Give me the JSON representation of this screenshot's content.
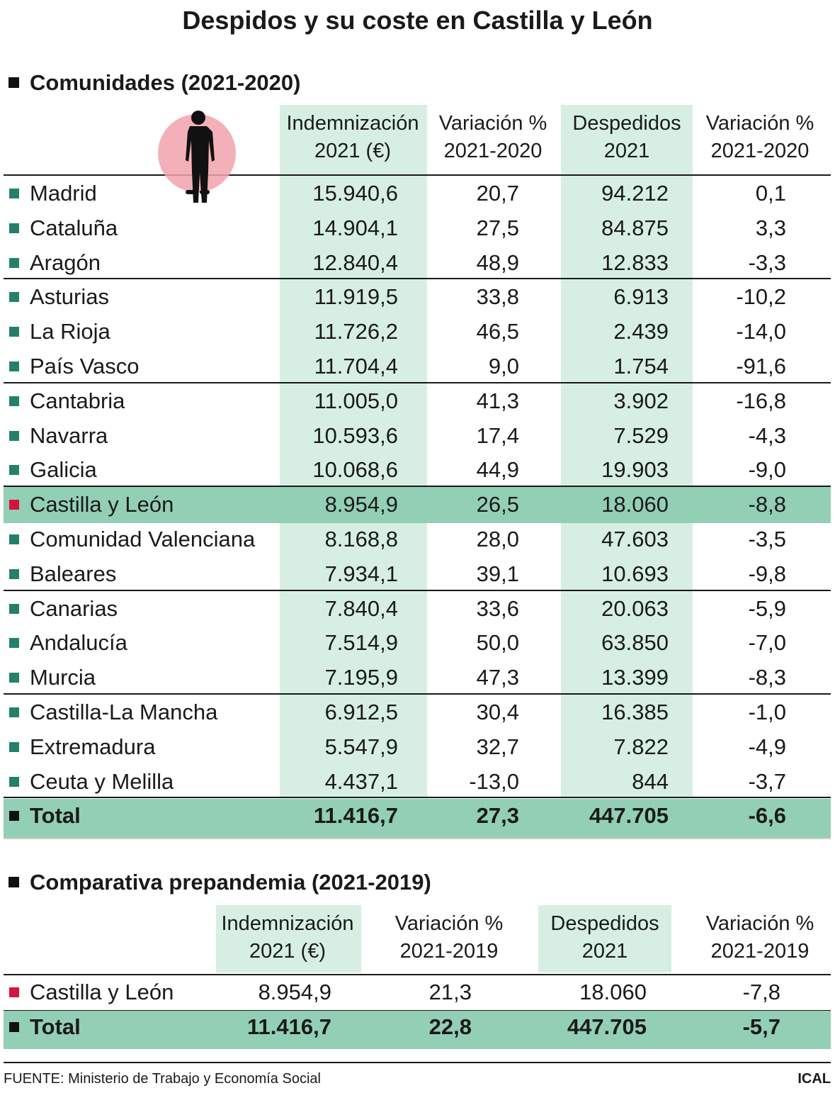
{
  "title": "Despidos y su coste en Castilla y León",
  "sections": [
    {
      "heading": "Comunidades (2021-2020)",
      "columns": [
        [
          "Indemnización",
          "2021 (€)"
        ],
        [
          "Variación %",
          "2021-2020"
        ],
        [
          "Despedidos",
          "2021"
        ],
        [
          "Variación %",
          "2021-2020"
        ]
      ],
      "rows": [
        {
          "label": "Madrid",
          "values": [
            "15.940,6",
            "20,7",
            "94.212",
            "0,1"
          ],
          "marker": "#24806a"
        },
        {
          "label": "Cataluña",
          "values": [
            "14.904,1",
            "27,5",
            "84.875",
            "3,3"
          ],
          "marker": "#24806a"
        },
        {
          "label": "Aragón",
          "values": [
            "12.840,4",
            "48,9",
            "12.833",
            "-3,3"
          ],
          "marker": "#24806a"
        },
        {
          "label": "Asturias",
          "values": [
            "11.919,5",
            "33,8",
            "6.913",
            "-10,2"
          ],
          "marker": "#24806a"
        },
        {
          "label": "La Rioja",
          "values": [
            "11.726,2",
            "46,5",
            "2.439",
            "-14,0"
          ],
          "marker": "#24806a"
        },
        {
          "label": "País Vasco",
          "values": [
            "11.704,4",
            "9,0",
            "1.754",
            "-91,6"
          ],
          "marker": "#24806a"
        },
        {
          "label": "Cantabria",
          "values": [
            "11.005,0",
            "41,3",
            "3.902",
            "-16,8"
          ],
          "marker": "#24806a"
        },
        {
          "label": "Navarra",
          "values": [
            "10.593,6",
            "17,4",
            "7.529",
            "-4,3"
          ],
          "marker": "#24806a"
        },
        {
          "label": "Galicia",
          "values": [
            "10.068,6",
            "44,9",
            "19.903",
            "-9,0"
          ],
          "marker": "#24806a"
        },
        {
          "label": "Castilla y León",
          "values": [
            "8.954,9",
            "26,5",
            "18.060",
            "-8,8"
          ],
          "marker": "#d5143c",
          "fill": "#93cfb5"
        },
        {
          "label": "Comunidad Valenciana",
          "values": [
            "8.168,8",
            "28,0",
            "47.603",
            "-3,5"
          ],
          "marker": "#24806a"
        },
        {
          "label": "Baleares",
          "values": [
            "7.934,1",
            "39,1",
            "10.693",
            "-9,8"
          ],
          "marker": "#24806a"
        },
        {
          "label": "Canarias",
          "values": [
            "7.840,4",
            "33,6",
            "20.063",
            "-5,9"
          ],
          "marker": "#24806a"
        },
        {
          "label": "Andalucía",
          "values": [
            "7.514,9",
            "50,0",
            "63.850",
            "-7,0"
          ],
          "marker": "#24806a"
        },
        {
          "label": "Murcia",
          "values": [
            "7.195,9",
            "47,3",
            "13.399",
            "-8,3"
          ],
          "marker": "#24806a"
        },
        {
          "label": "Castilla-La Mancha",
          "values": [
            "6.912,5",
            "30,4",
            "16.385",
            "-1,0"
          ],
          "marker": "#24806a"
        },
        {
          "label": "Extremadura",
          "values": [
            "5.547,9",
            "32,7",
            "7.822",
            "-4,9"
          ],
          "marker": "#24806a"
        },
        {
          "label": "Ceuta y Melilla",
          "values": [
            "4.437,1",
            "-13,0",
            "844",
            "-3,7"
          ],
          "marker": "#24806a"
        },
        {
          "label": "Total",
          "values": [
            "11.416,7",
            "27,3",
            "447.705",
            "-6,6"
          ],
          "marker": "#111111",
          "fill": "#93cfb5",
          "bold": true
        }
      ]
    },
    {
      "heading": "Comparativa prepandemia (2021-2019)",
      "columns": [
        [
          "Indemnización",
          "2021 (€)"
        ],
        [
          "Variación %",
          "2021-2019"
        ],
        [
          "Despedidos",
          "2021"
        ],
        [
          "Variación %",
          "2021-2019"
        ]
      ],
      "rows": [
        {
          "label": "Castilla y León",
          "values": [
            "8.954,9",
            "21,3",
            "18.060",
            "-7,8"
          ],
          "marker": "#d5143c"
        },
        {
          "label": "Total",
          "values": [
            "11.416,7",
            "22,8",
            "447.705",
            "-5,7"
          ],
          "marker": "#111111",
          "fill": "#93cfb5",
          "bold": true
        }
      ]
    }
  ],
  "source": "FUENTE: Ministerio de Trabajo y Economía Social",
  "brand": "ICAL"
}
